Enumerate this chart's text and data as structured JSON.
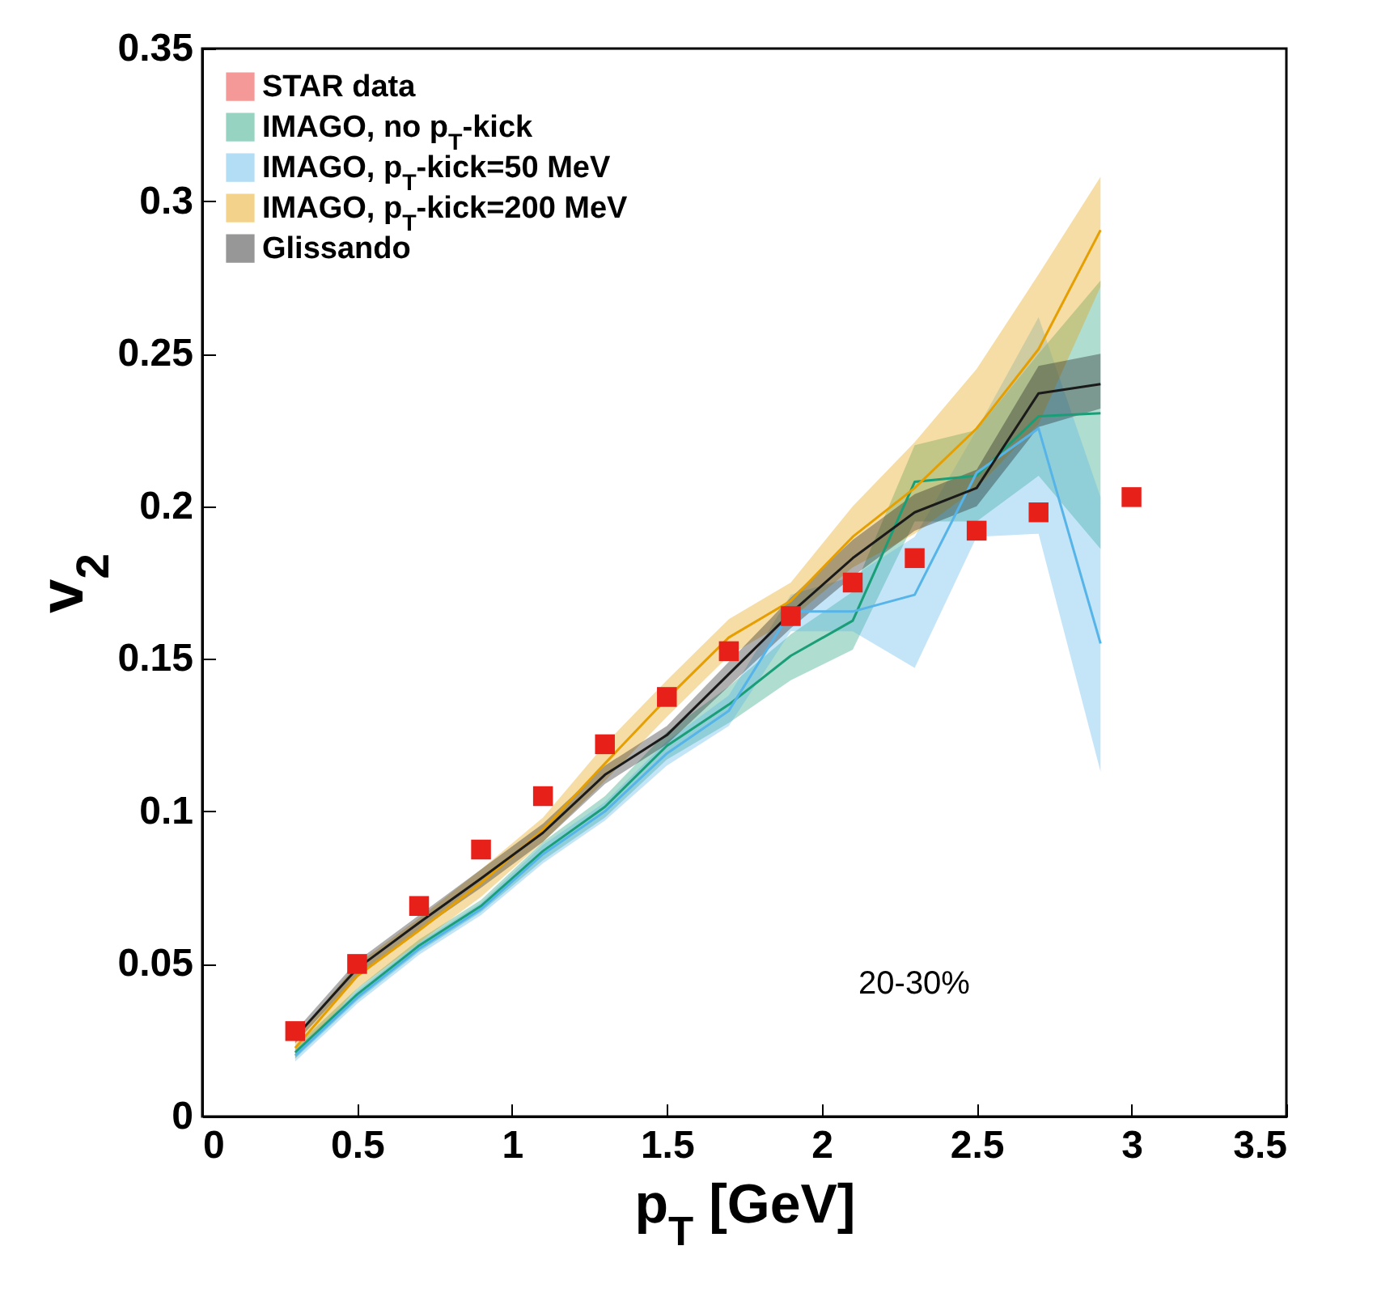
{
  "chart_data": {
    "type": "line",
    "xlabel": "p$_{T}$ [GeV]",
    "ylabel": "v$_{2}$",
    "xlim": [
      0,
      3.5
    ],
    "xticks": [
      0,
      0.5,
      1,
      1.5,
      2,
      2.5,
      3,
      3.5
    ],
    "ylim": [
      0,
      0.35
    ],
    "yticks": [
      0,
      0.05,
      0.1,
      0.15,
      0.2,
      0.25,
      0.3,
      0.35
    ],
    "legend": "top left",
    "annotations": [
      "20-30%"
    ],
    "series": [
      {
        "name": "STAR data",
        "type": "scatter",
        "marker": "square",
        "color": "#e8201a",
        "x": [
          0.3,
          0.5,
          0.7,
          0.9,
          1.1,
          1.3,
          1.5,
          1.7,
          1.9,
          2.1,
          2.3,
          2.5,
          2.7,
          3.0
        ],
        "values": [
          0.028,
          0.05,
          0.069,
          0.0875,
          0.105,
          0.122,
          0.1375,
          0.1525,
          0.164,
          0.175,
          0.183,
          0.192,
          0.198,
          0.203
        ]
      },
      {
        "name": "IMAGO, no p$_{T}$-kick",
        "color": "#1a9e77",
        "x": [
          0.3,
          0.5,
          0.7,
          0.9,
          1.1,
          1.3,
          1.5,
          1.7,
          1.9,
          2.1,
          2.3,
          2.5,
          2.7,
          2.9
        ],
        "values": [
          0.021,
          0.04,
          0.056,
          0.069,
          0.087,
          0.1015,
          0.1215,
          0.135,
          0.151,
          0.1625,
          0.208,
          0.21,
          0.2295,
          0.2305
        ],
        "lower": [
          0.019,
          0.038,
          0.054,
          0.067,
          0.084,
          0.098,
          0.117,
          0.129,
          0.143,
          0.153,
          0.195,
          0.195,
          0.21,
          0.186
        ],
        "upper": [
          0.023,
          0.042,
          0.058,
          0.071,
          0.09,
          0.105,
          0.126,
          0.141,
          0.158,
          0.172,
          0.22,
          0.225,
          0.25,
          0.274
        ]
      },
      {
        "name": "IMAGO, p$_{T}$-kick=50 MeV",
        "color": "#56b4e9",
        "x": [
          0.3,
          0.5,
          0.7,
          0.9,
          1.1,
          1.3,
          1.5,
          1.7,
          1.9,
          2.1,
          2.3,
          2.5,
          2.7,
          2.9
        ],
        "values": [
          0.02,
          0.039,
          0.055,
          0.068,
          0.086,
          0.1,
          0.119,
          0.133,
          0.1655,
          0.1655,
          0.171,
          0.211,
          0.2255,
          0.155
        ],
        "lower": [
          0.018,
          0.037,
          0.053,
          0.066,
          0.083,
          0.097,
          0.115,
          0.128,
          0.159,
          0.159,
          0.147,
          0.19,
          0.191,
          0.113
        ],
        "upper": [
          0.022,
          0.041,
          0.057,
          0.07,
          0.089,
          0.103,
          0.123,
          0.138,
          0.171,
          0.177,
          0.19,
          0.225,
          0.262,
          0.203
        ]
      },
      {
        "name": "IMAGO, p$_{T}$-kick=200 MeV",
        "color": "#e69f00",
        "x": [
          0.3,
          0.5,
          0.7,
          0.9,
          1.1,
          1.3,
          1.5,
          1.7,
          1.9,
          2.1,
          2.3,
          2.5,
          2.7,
          2.9
        ],
        "values": [
          0.0225,
          0.046,
          0.061,
          0.0765,
          0.094,
          0.1157,
          0.137,
          0.157,
          0.169,
          0.19,
          0.206,
          0.2255,
          0.2515,
          0.2905
        ],
        "lower": [
          0.019,
          0.042,
          0.057,
          0.072,
          0.09,
          0.11,
          0.131,
          0.151,
          0.163,
          0.18,
          0.191,
          0.206,
          0.227,
          0.272
        ],
        "upper": [
          0.026,
          0.05,
          0.065,
          0.081,
          0.098,
          0.122,
          0.143,
          0.163,
          0.175,
          0.2,
          0.221,
          0.245,
          0.276,
          0.308
        ]
      },
      {
        "name": "Glissando",
        "color": "#1a1a1a",
        "x": [
          0.3,
          0.5,
          0.7,
          0.9,
          1.1,
          1.3,
          1.5,
          1.7,
          1.9,
          2.1,
          2.3,
          2.5,
          2.7,
          2.9
        ],
        "values": [
          0.026,
          0.0485,
          0.0635,
          0.078,
          0.093,
          0.112,
          0.125,
          0.145,
          0.165,
          0.183,
          0.198,
          0.206,
          0.237,
          0.24
        ],
        "lower": [
          0.024,
          0.046,
          0.061,
          0.075,
          0.09,
          0.109,
          0.122,
          0.141,
          0.16,
          0.177,
          0.192,
          0.2,
          0.226,
          0.232
        ],
        "upper": [
          0.028,
          0.051,
          0.066,
          0.081,
          0.096,
          0.115,
          0.128,
          0.149,
          0.17,
          0.189,
          0.204,
          0.212,
          0.246,
          0.25
        ]
      }
    ]
  }
}
